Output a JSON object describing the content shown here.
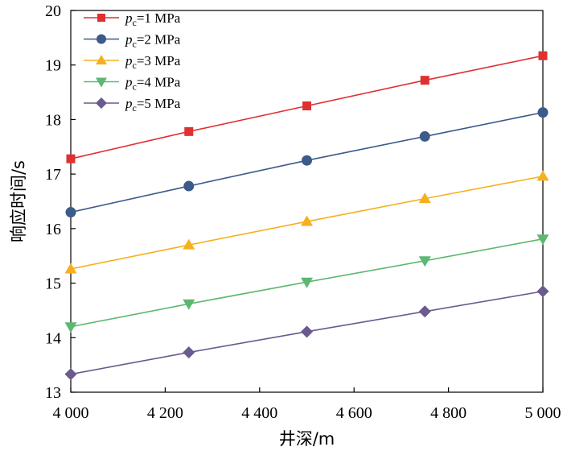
{
  "chart_data": {
    "type": "line",
    "title": "",
    "xlabel": "井深/m",
    "ylabel": "响应时间/s",
    "xlim": [
      4000,
      5000
    ],
    "ylim": [
      13,
      20
    ],
    "grid": false,
    "legend_position": "top-left",
    "x": [
      4000,
      4250,
      4500,
      4750,
      5000
    ],
    "x_ticks": [
      4000,
      4200,
      4400,
      4600,
      4800,
      5000
    ],
    "x_tick_labels": [
      "4 000",
      "4 200",
      "4 400",
      "4 600",
      "4 800",
      "5 000"
    ],
    "y_ticks": [
      13,
      14,
      15,
      16,
      17,
      18,
      19,
      20
    ],
    "y_tick_labels": [
      "13",
      "14",
      "15",
      "16",
      "17",
      "18",
      "19",
      "20"
    ],
    "series": [
      {
        "name": "pc=1 MPa",
        "label_var": "p",
        "label_sub": "c",
        "label_rest": "=1 MPa",
        "color": "#e03030",
        "marker": "square",
        "values": [
          17.28,
          17.78,
          18.25,
          18.72,
          19.17
        ]
      },
      {
        "name": "pc=2 MPa",
        "label_var": "p",
        "label_sub": "c",
        "label_rest": "=2 MPa",
        "color": "#3c5a8a",
        "marker": "circle",
        "values": [
          16.3,
          16.78,
          17.25,
          17.69,
          18.13
        ]
      },
      {
        "name": "pc=3 MPa",
        "label_var": "p",
        "label_sub": "c",
        "label_rest": "=3 MPa",
        "color": "#f5b020",
        "marker": "triangle-up",
        "values": [
          15.26,
          15.7,
          16.13,
          16.55,
          16.96
        ]
      },
      {
        "name": "pc=4 MPa",
        "label_var": "p",
        "label_sub": "c",
        "label_rest": "=4 MPa",
        "color": "#5cb870",
        "marker": "triangle-down",
        "values": [
          14.2,
          14.62,
          15.02,
          15.41,
          15.81
        ]
      },
      {
        "name": "pc=5 MPa",
        "label_var": "p",
        "label_sub": "c",
        "label_rest": "=5 MPa",
        "color": "#6a5a8e",
        "marker": "diamond",
        "values": [
          13.33,
          13.73,
          14.11,
          14.48,
          14.85
        ]
      }
    ]
  }
}
